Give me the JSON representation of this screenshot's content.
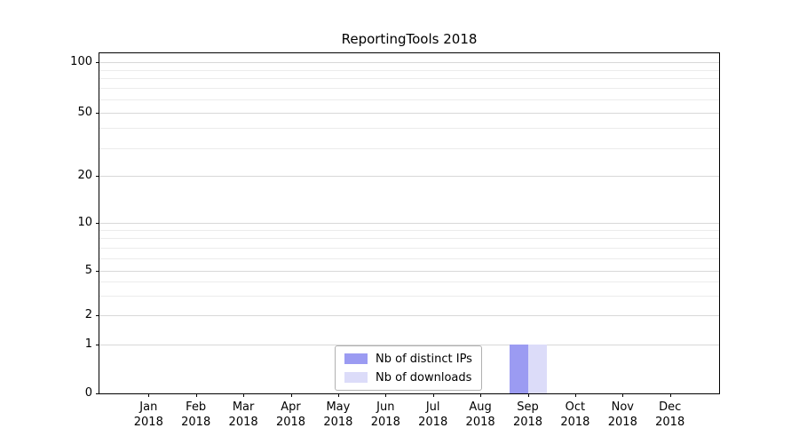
{
  "chart_data": {
    "type": "bar",
    "title": "ReportingTools 2018",
    "categories": [
      "Jan 2018",
      "Feb 2018",
      "Mar 2018",
      "Apr 2018",
      "May 2018",
      "Jun 2018",
      "Jul 2018",
      "Aug 2018",
      "Sep 2018",
      "Oct 2018",
      "Nov 2018",
      "Dec 2018"
    ],
    "month_labels": [
      "Jan",
      "Feb",
      "Mar",
      "Apr",
      "May",
      "Jun",
      "Jul",
      "Aug",
      "Sep",
      "Oct",
      "Nov",
      "Dec"
    ],
    "year_label": "2018",
    "series": [
      {
        "name": "Nb of distinct IPs",
        "color": "#9b9bf2",
        "values": [
          0,
          0,
          0,
          0,
          0,
          0,
          0,
          0,
          1,
          0,
          0,
          0
        ]
      },
      {
        "name": "Nb of downloads",
        "color": "#dcdcf9",
        "values": [
          0,
          0,
          0,
          0,
          0,
          0,
          0,
          0,
          1,
          0,
          0,
          0
        ]
      }
    ],
    "y_scale": "symlog",
    "ylim": [
      0,
      107
    ],
    "y_ticks": [
      0,
      1,
      2,
      5,
      10,
      20,
      50,
      100
    ],
    "y_minor_ticks": [
      3,
      4,
      6,
      7,
      8,
      9,
      30,
      40,
      60,
      70,
      80,
      90
    ],
    "grid": "horizontal",
    "legend_position": "lower center"
  }
}
